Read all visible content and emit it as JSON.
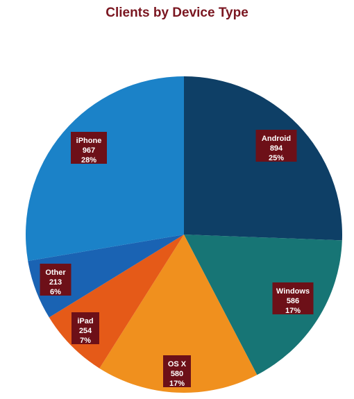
{
  "chart_data": {
    "type": "pie",
    "title": "Clients by Device Type",
    "slices": [
      {
        "label": "Android",
        "value": 894,
        "percent": "25%",
        "color": "#0e3f66"
      },
      {
        "label": "Windows",
        "value": 586,
        "percent": "17%",
        "color": "#177575"
      },
      {
        "label": "OS X",
        "value": 580,
        "percent": "17%",
        "color": "#f0901e"
      },
      {
        "label": "iPad",
        "value": 254,
        "percent": "7%",
        "color": "#e55a18"
      },
      {
        "label": "Other",
        "value": 213,
        "percent": "6%",
        "color": "#1a63b3"
      },
      {
        "label": "iPhone",
        "value": 967,
        "percent": "28%",
        "color": "#1b82c8"
      }
    ],
    "label_box_color": "#6d1018",
    "label_text_color": "#ffffff",
    "title_color": "#7a1620"
  }
}
